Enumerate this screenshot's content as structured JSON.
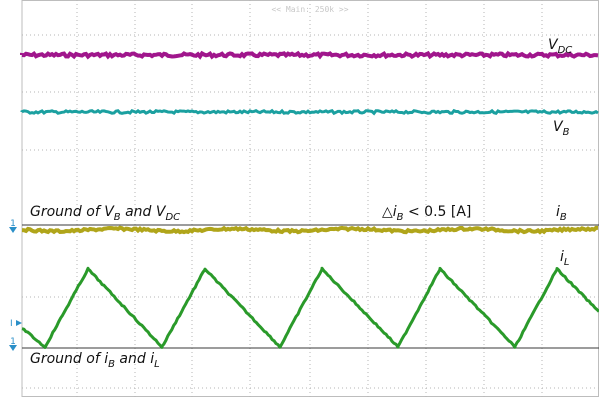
{
  "header_text": "<< Main: 250k >>",
  "chart_data": {
    "type": "line",
    "grid": "on",
    "series": [
      {
        "name": "V_DC",
        "kind": "flat",
        "color": "#a0168c"
      },
      {
        "name": "V_B",
        "kind": "flat",
        "color": "#1ba0a0"
      },
      {
        "name": "i_B",
        "kind": "flat",
        "color": "#b0a51a"
      },
      {
        "name": "i_L",
        "kind": "triangle",
        "color": "#2a9a2a",
        "peaks": 5,
        "troughs": 5
      }
    ],
    "annotations": {
      "vdc": {
        "main": "V",
        "sub": "DC"
      },
      "vb": {
        "main": "V",
        "sub": "B"
      },
      "ib": {
        "main": "i",
        "sub": "B"
      },
      "il": {
        "main": "i",
        "sub": "L"
      },
      "ground_top": {
        "prefix": "Ground of ",
        "v1": "V",
        "s1": "B",
        "mid": " and ",
        "v2": "V",
        "s2": "DC"
      },
      "ground_bottom": {
        "prefix": "Ground of ",
        "v1": "i",
        "s1": "B",
        "mid": " and ",
        "v2": "i",
        "s2": "L"
      },
      "delta": {
        "tri": "△",
        "v": "i",
        "s": "B",
        "rest": " < 0.5 [A]"
      }
    },
    "markers": {
      "ground_ch1": "1",
      "current_ch": "I",
      "ground_ch2": "1"
    }
  }
}
